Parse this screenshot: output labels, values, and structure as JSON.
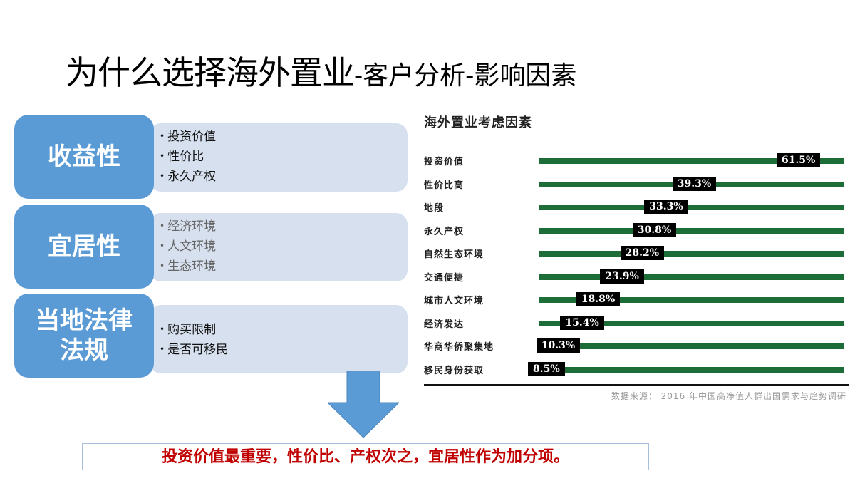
{
  "slide": {
    "title_main": "为什么选择海外置业",
    "title_sub": "-客户分析-影响因素"
  },
  "groups": [
    {
      "category": "收益性",
      "items": [
        "投资价值",
        "性价比",
        "永久产权"
      ]
    },
    {
      "category": "宜居性",
      "items": [
        "经济环境",
        "人文环境",
        "生态环境"
      ]
    },
    {
      "category": "当地法律法规",
      "category_lines": [
        "当地法律",
        "法规"
      ],
      "items": [
        "购买限制",
        "是否可移民"
      ]
    }
  ],
  "conclusion": "投资价值最重要，性价比、产权次之，宜居性作为加分项。",
  "colors": {
    "category_fill": "#5b9bd5",
    "detail_fill": "#d6e0ef",
    "bar_green": "#1d6d38",
    "label_box": "#000000",
    "conclusion_text": "#c00000",
    "arrow": "#5b9bd5"
  },
  "chart_data": {
    "type": "bar",
    "orientation": "horizontal",
    "title": "海外置业考虑因素",
    "categories": [
      "投资价值",
      "性价比高",
      "地段",
      "永久产权",
      "自然生态环境",
      "交通便捷",
      "城市人文环境",
      "经济发达",
      "华商华侨聚集地",
      "移民身份获取"
    ],
    "values": [
      61.5,
      39.3,
      33.3,
      30.8,
      28.2,
      23.9,
      18.8,
      15.4,
      10.3,
      8.5
    ],
    "value_labels": [
      "61.5%",
      "39.3%",
      "33.3%",
      "30.8%",
      "28.2%",
      "23.9%",
      "18.8%",
      "15.4%",
      "10.3%",
      "8.5%"
    ],
    "unit": "%",
    "xlabel": "",
    "ylabel": "",
    "xlim": [
      0,
      65
    ],
    "grid": false,
    "legend": "none",
    "source": "数据来源： 2016 年中国高净值人群出国需求与趋势调研"
  }
}
